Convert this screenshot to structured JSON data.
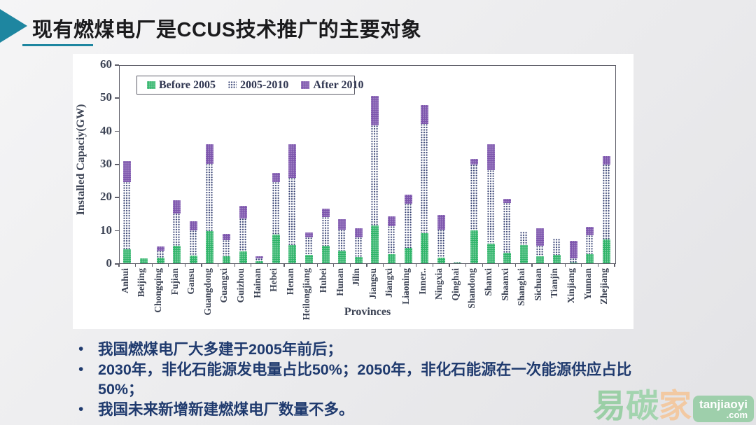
{
  "header": {
    "title": "现有燃煤电厂是CCUS技术推广的主要对象"
  },
  "chart_data": {
    "type": "bar",
    "stacked": true,
    "title": "",
    "xlabel": "Provinces",
    "ylabel": "Installed Capaciy(GW)",
    "ylim": [
      0,
      60
    ],
    "yticks": [
      0,
      10,
      20,
      30,
      40,
      50,
      60
    ],
    "grid": false,
    "legend_position": "top-left-inside",
    "categories": [
      "Anhui",
      "Beijing",
      "Chongqing",
      "Fujian",
      "Gansu",
      "Guangdong",
      "Guangxi",
      "Guizhou",
      "Hainan",
      "Hebei",
      "Henan",
      "Heilongjiang",
      "Hubei",
      "Hunan",
      "Jilin",
      "Jiangsu",
      "Jiangxi",
      "Liaoning",
      "Inner..",
      "Ningxia",
      "Qinghai",
      "Shandong",
      "Shanxi",
      "Shaanxi",
      "Shanghai",
      "Sichuan",
      "Tianjin",
      "Xinjiang",
      "Yunnan",
      "Zhejiang"
    ],
    "series": [
      {
        "name": "Before 2005",
        "key": "before-2005",
        "color": "#2eb469",
        "pattern": "green-checker",
        "values": [
          4.2,
          1.5,
          1.6,
          5.3,
          2.3,
          9.7,
          2.1,
          3.5,
          0.6,
          8.6,
          5.6,
          2.6,
          5.3,
          3.9,
          2.0,
          11.4,
          2.8,
          4.6,
          9.2,
          1.6,
          0.2,
          9.9,
          6.0,
          3.2,
          5.5,
          2.2,
          2.5,
          0.2,
          2.8,
          7.2
        ]
      },
      {
        "name": "2005-2010",
        "key": "2005-2010",
        "color": "#323e70",
        "pattern": "navy-dots-on-white",
        "values": [
          20.4,
          0,
          2.2,
          9.7,
          7.7,
          20.3,
          4.8,
          10.1,
          0.8,
          15.9,
          20.2,
          5.2,
          8.7,
          6.3,
          5.8,
          30.2,
          8.5,
          13.4,
          32.8,
          8.6,
          0.2,
          19.8,
          22.2,
          15.0,
          4.0,
          3.0,
          4.9,
          1.3,
          5.7,
          22.7
        ]
      },
      {
        "name": "After 2010",
        "key": "after-2010",
        "color": "#7d55ad",
        "pattern": "purple-checker",
        "values": [
          6.3,
          0,
          1.2,
          4.1,
          2.7,
          6.0,
          1.9,
          3.7,
          0.7,
          2.7,
          10.2,
          1.5,
          2.4,
          3.1,
          2.8,
          8.9,
          2.8,
          2.8,
          5.7,
          4.3,
          0,
          1.7,
          7.8,
          1.2,
          0,
          5.3,
          0,
          5.2,
          2.5,
          2.4
        ]
      }
    ]
  },
  "bullets": [
    "我国燃煤电厂大多建于2005年前后；",
    "2030年，非化石能源发电量占比50%；2050年，非化石能源在一次能源供应占比50%；",
    "我国未来新增新建燃煤电厂数量不多。"
  ],
  "bullet_marker": "•",
  "watermark": {
    "brand_char_1": "易",
    "brand_char_2": "碳",
    "brand_char_3": "家",
    "badge_line1": "tanjiaoyi",
    "badge_line2": ".com"
  },
  "colors": {
    "accent_teal": "#1e86a0",
    "title_text": "#1b1b1d",
    "bullet_text": "#1f3a6e",
    "series_green": "#2eb469",
    "series_dot_navy": "#323e70",
    "series_purple": "#7d55ad",
    "watermark_green": "#9ecfab",
    "watermark_peach": "#f2c9a2"
  }
}
